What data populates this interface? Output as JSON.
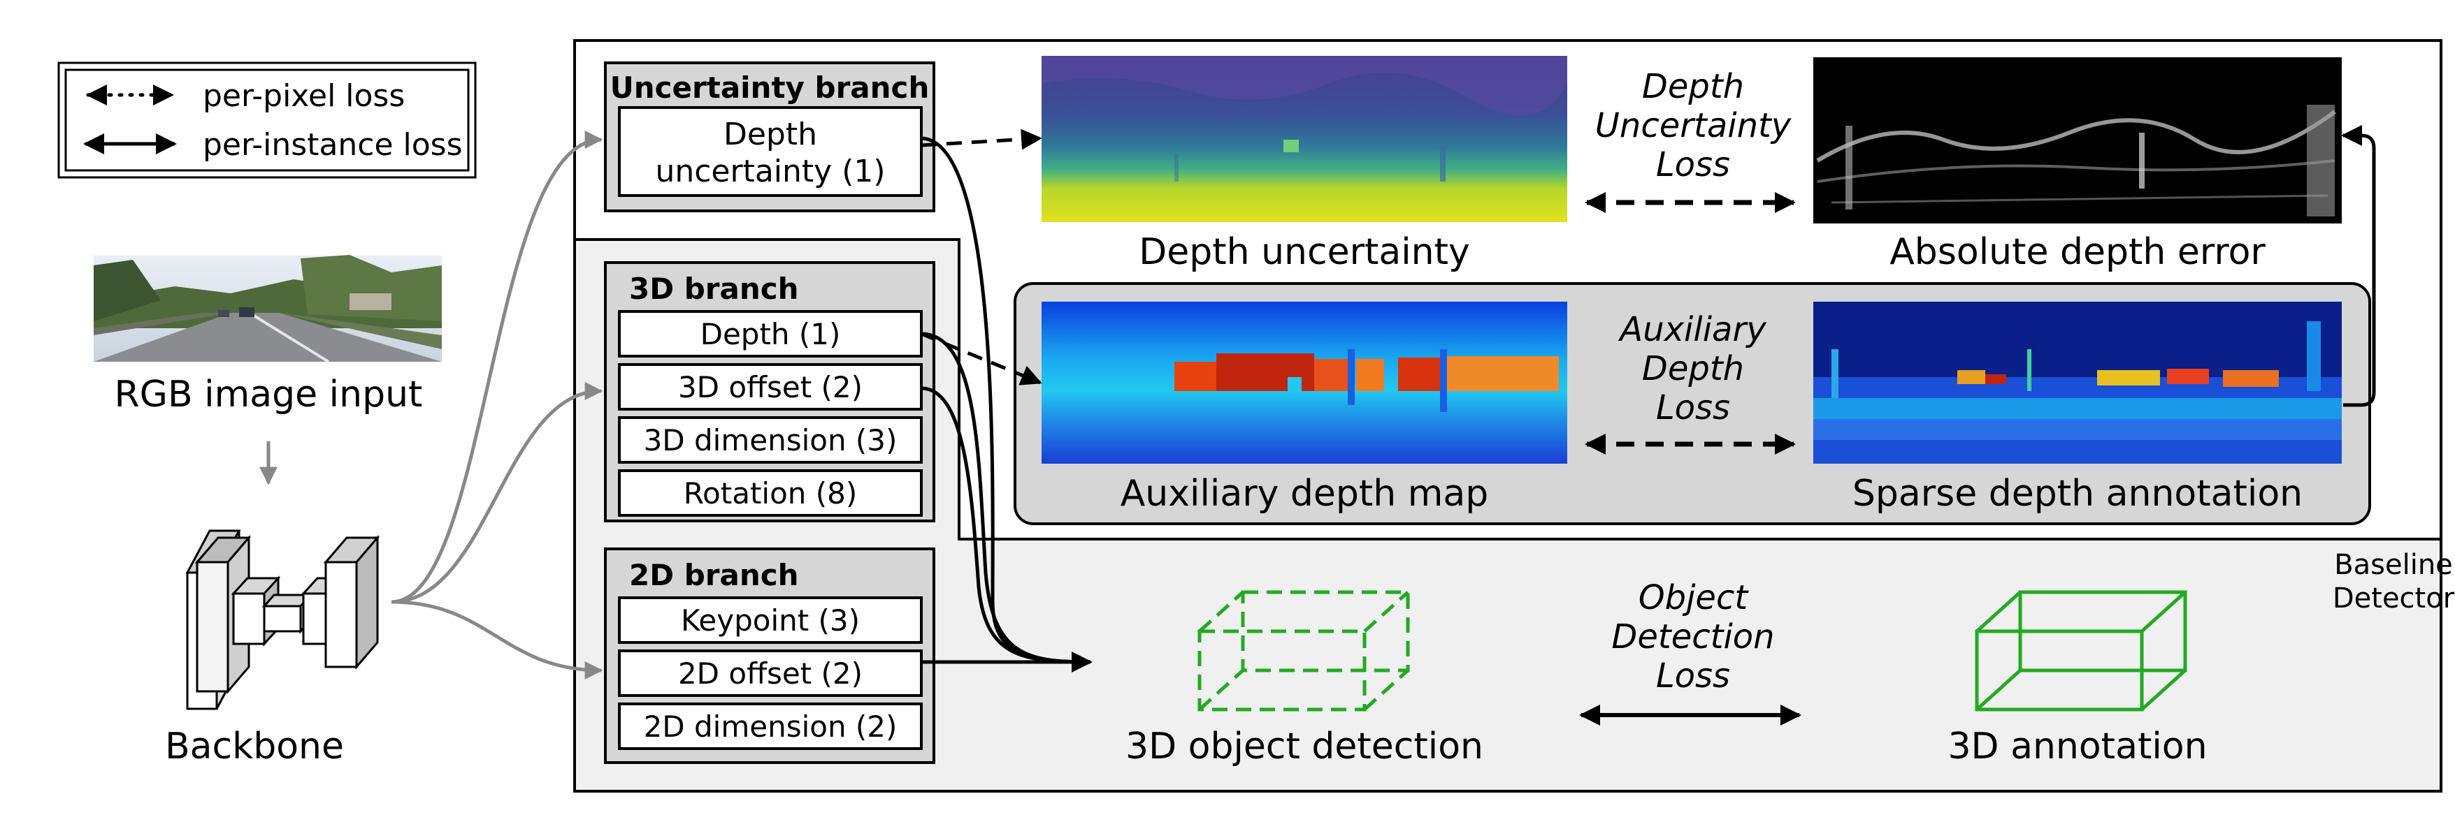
{
  "legend": {
    "per_pixel": "per-pixel loss",
    "per_instance": "per-instance loss"
  },
  "input": {
    "label": "RGB image input"
  },
  "backbone": {
    "label": "Backbone"
  },
  "uncertainty_branch": {
    "title": "Uncertainty branch",
    "items": [
      "Depth uncertainty (1)"
    ],
    "item_lines": [
      "Depth",
      "uncertainty (1)"
    ]
  },
  "branch_3d": {
    "title": "3D branch",
    "items": [
      "Depth (1)",
      "3D offset (2)",
      "3D dimension (3)",
      "Rotation (8)"
    ]
  },
  "branch_2d": {
    "title": "2D branch",
    "items": [
      "Keypoint (3)",
      "2D offset (2)",
      "2D dimension (2)"
    ]
  },
  "maps": {
    "depth_uncertainty": "Depth uncertainty",
    "absolute_depth_error": "Absolute depth error",
    "auxiliary_depth_map": "Auxiliary depth map",
    "sparse_depth_annotation": "Sparse depth annotation"
  },
  "losses": {
    "depth_uncertainty": [
      "Depth",
      "Uncertainty",
      "Loss"
    ],
    "auxiliary_depth": [
      "Auxiliary",
      "Depth",
      "Loss"
    ],
    "object_detection": [
      "Object",
      "Detection",
      "Loss"
    ]
  },
  "detection": {
    "prediction": "3D object detection",
    "annotation": "3D annotation"
  },
  "baseline": {
    "lines": [
      "Baseline",
      "Detector"
    ]
  },
  "colors": {
    "panel_gray": "#d6d6d6",
    "baseline_gray": "#f0f0f0",
    "box_green": "#22aa22",
    "uncertainty_purple": "#3b3170",
    "uncertainty_yellow": "#d9e021",
    "depth_blue": "#1a44e0",
    "depth_red": "#c0260e"
  }
}
